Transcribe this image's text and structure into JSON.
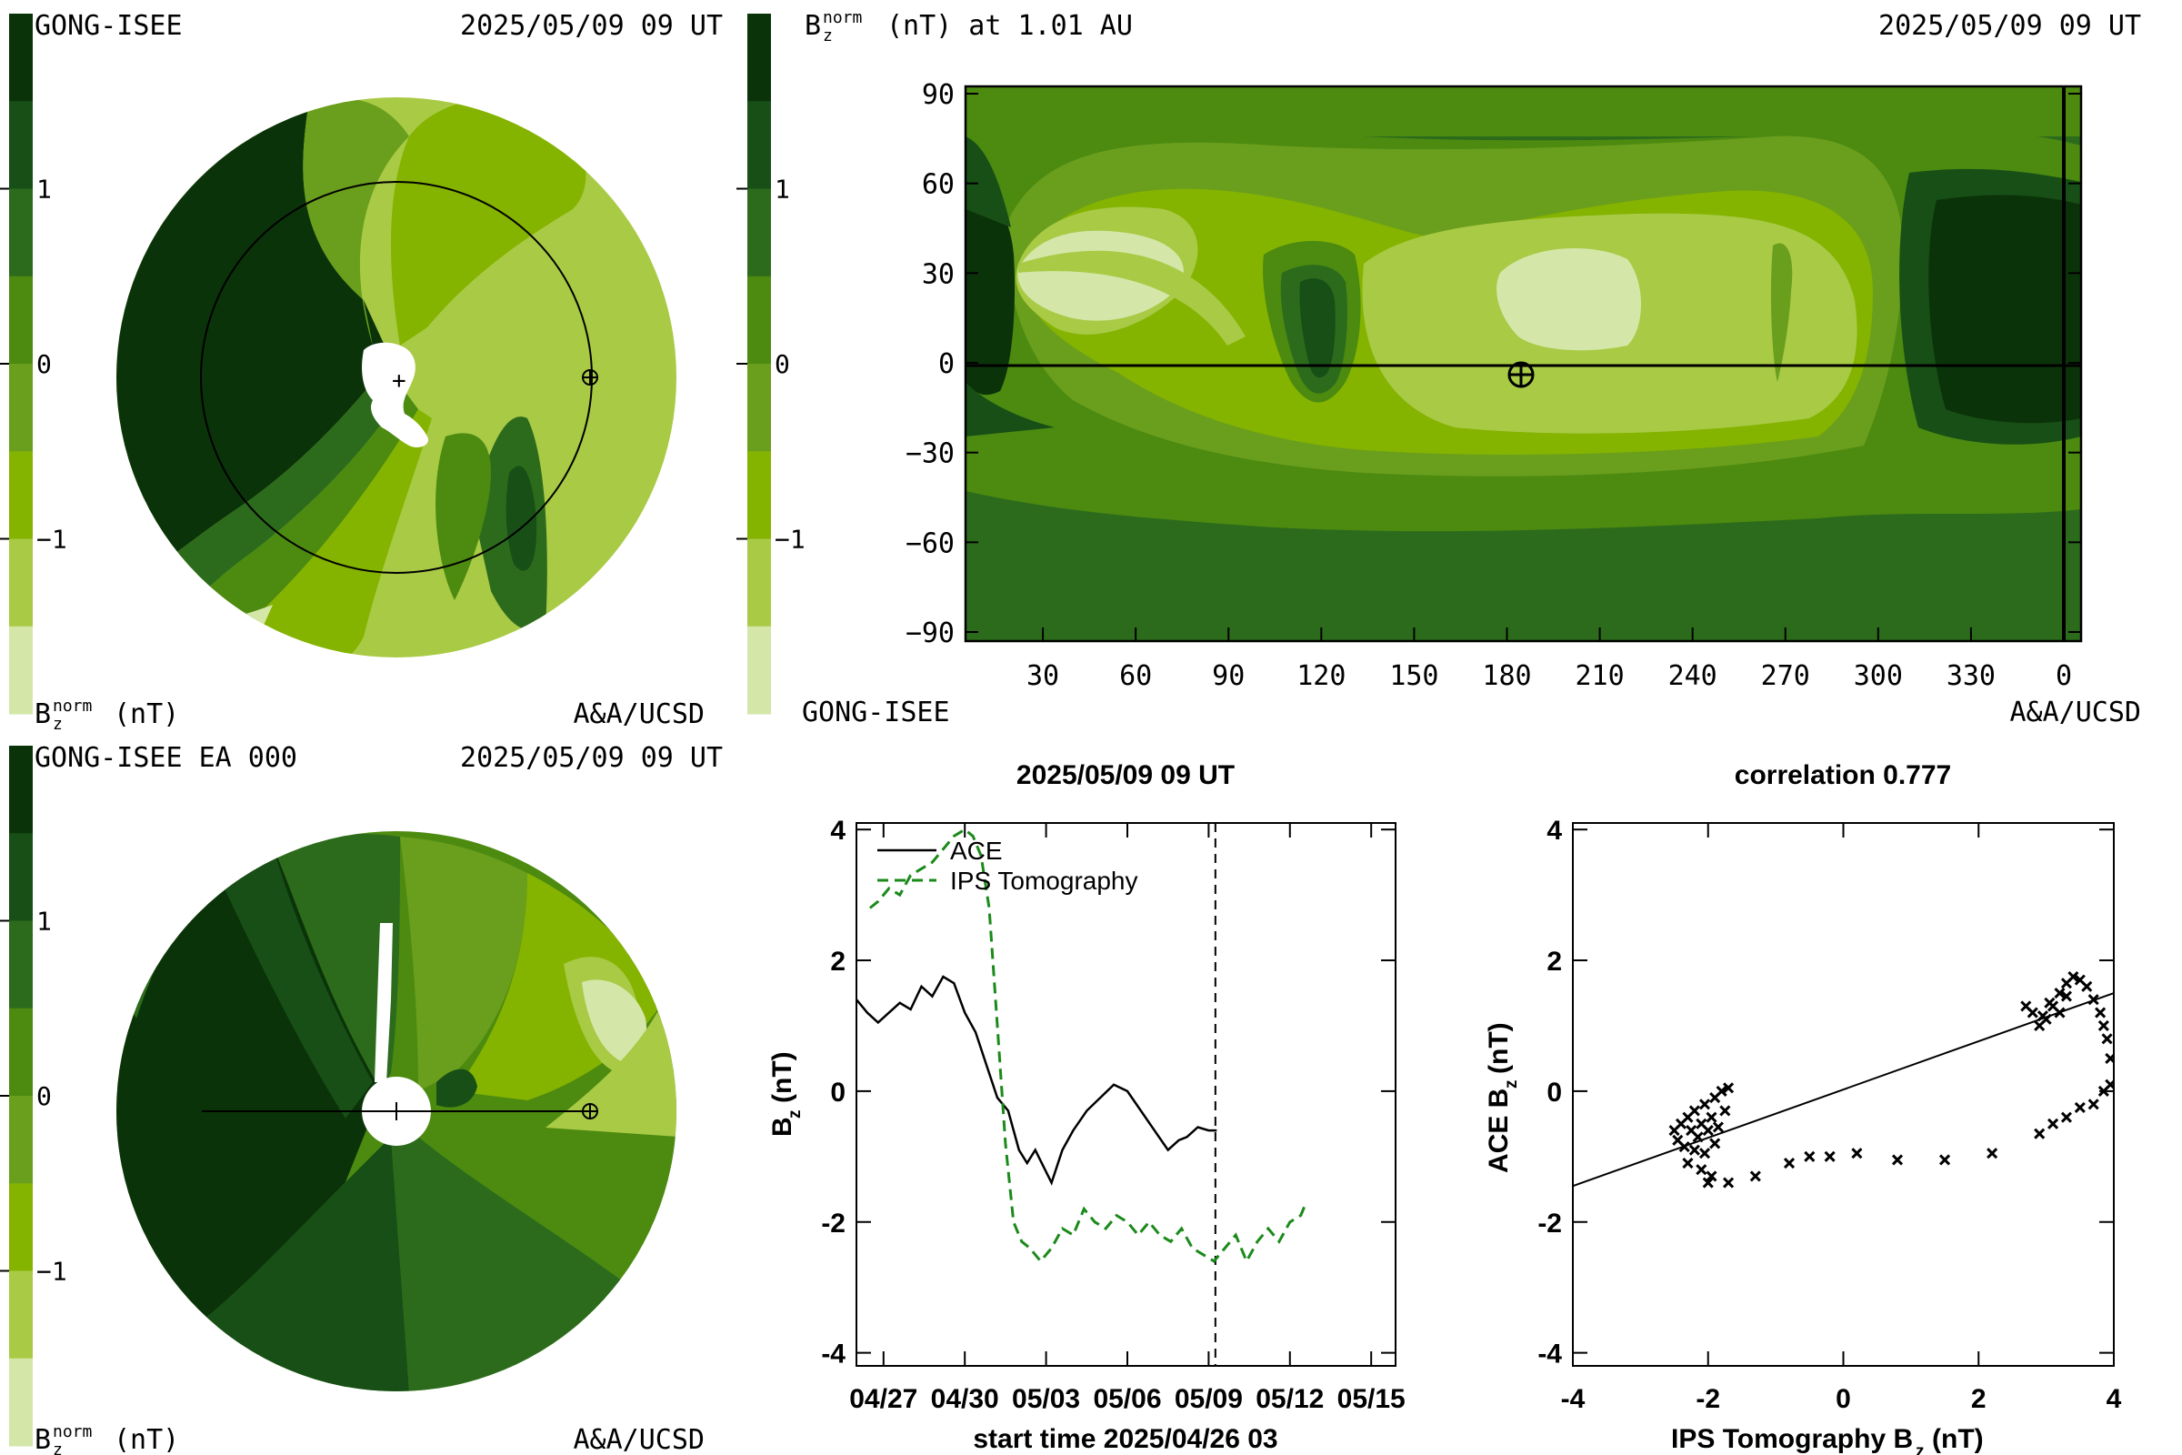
{
  "colorbar_colors": [
    "#d4e7a9",
    "#a9ca45",
    "#84b300",
    "#6a9e1d",
    "#4c8a10",
    "#2c6b1c",
    "#174f16",
    "#0b3309"
  ],
  "panel_top_left": {
    "source": "GONG-ISEE",
    "datetime": "2025/05/09 09 UT",
    "colorbar_ticks": [
      "1",
      "0",
      "−1"
    ],
    "quantity": "B",
    "quantity_sub": "z",
    "quantity_sup": "norm",
    "unit": "(nT)",
    "credit": "A&A/UCSD"
  },
  "panel_bottom_left": {
    "source": "GONG-ISEE EA 000",
    "datetime": "2025/05/09 09 UT",
    "colorbar_ticks": [
      "1",
      "0",
      "−1"
    ],
    "quantity": "B",
    "quantity_sub": "z",
    "quantity_sup": "norm",
    "unit": "(nT)",
    "credit": "A&A/UCSD"
  },
  "panel_map": {
    "title_quantity": "B",
    "title_sub": "z",
    "title_sup": "norm",
    "title_rest": "(nT) at 1.01 AU",
    "datetime": "2025/05/09 09 UT",
    "colorbar_ticks": [
      "1",
      "0",
      "−1"
    ],
    "source": "GONG-ISEE",
    "credit": "A&A/UCSD",
    "y_ticks": [
      "90",
      "60",
      "30",
      "0",
      "−30",
      "−60",
      "−90"
    ],
    "x_ticks": [
      "30",
      "60",
      "90",
      "120",
      "150",
      "180",
      "210",
      "240",
      "270",
      "300",
      "330",
      "0"
    ]
  },
  "chart_data": [
    {
      "type": "line",
      "title": "2025/05/09 09 UT",
      "xlabel": "start time 2025/04/26 03",
      "ylabel": "B",
      "ylabel_sub": "z",
      "ylabel_unit": "(nT)",
      "x_tick_labels": [
        "04/27",
        "04/30",
        "05/03",
        "05/06",
        "05/09",
        "05/12",
        "05/15"
      ],
      "x_tick_days": [
        1,
        4,
        7,
        10,
        13,
        16,
        19
      ],
      "xlim_days": [
        0,
        19.9
      ],
      "ylim": [
        -4.2,
        4.1
      ],
      "y_ticks": [
        4,
        2,
        0,
        -2,
        -4
      ],
      "vline_day": 13.25,
      "legend_location": "top-left",
      "series": [
        {
          "name": "ACE",
          "style": "solid",
          "color": "#000000",
          "x": [
            0,
            0.4,
            0.8,
            1.2,
            1.6,
            2.0,
            2.4,
            2.8,
            3.2,
            3.6,
            4.0,
            4.4,
            4.8,
            5.2,
            5.6,
            6.0,
            6.3,
            6.6,
            6.9,
            7.2,
            7.6,
            8.0,
            8.5,
            9.0,
            9.5,
            10.0,
            10.5,
            11.0,
            11.5,
            11.9,
            12.2,
            12.6,
            13.0,
            13.3
          ],
          "y": [
            1.4,
            1.2,
            1.05,
            1.2,
            1.35,
            1.25,
            1.6,
            1.45,
            1.75,
            1.65,
            1.2,
            0.9,
            0.4,
            -0.1,
            -0.3,
            -0.9,
            -1.1,
            -0.9,
            -1.15,
            -1.4,
            -0.9,
            -0.6,
            -0.3,
            -0.1,
            0.1,
            0.0,
            -0.3,
            -0.6,
            -0.9,
            -0.75,
            -0.7,
            -0.55,
            -0.6,
            -0.6
          ]
        },
        {
          "name": "IPS Tomography",
          "style": "dashed",
          "color": "#1a8a1a",
          "x": [
            0.5,
            0.8,
            1.2,
            1.6,
            2.0,
            2.4,
            2.8,
            3.2,
            3.6,
            4.0,
            4.3,
            4.6,
            4.9,
            5.2,
            5.5,
            5.8,
            6.1,
            6.4,
            6.8,
            7.2,
            7.6,
            8.0,
            8.4,
            8.8,
            9.2,
            9.6,
            10.0,
            10.4,
            10.8,
            11.2,
            11.6,
            12.0,
            12.4,
            12.8,
            13.2,
            13.6,
            14.0,
            14.4,
            14.8,
            15.2,
            15.6,
            16.0,
            16.4,
            16.6
          ],
          "y": [
            2.8,
            2.9,
            3.1,
            3.0,
            3.3,
            3.4,
            3.5,
            3.7,
            3.9,
            4.0,
            3.9,
            3.6,
            2.8,
            1.0,
            -0.8,
            -2.0,
            -2.3,
            -2.4,
            -2.6,
            -2.4,
            -2.1,
            -2.2,
            -1.8,
            -2.0,
            -2.1,
            -1.9,
            -2.0,
            -2.2,
            -2.0,
            -2.2,
            -2.3,
            -2.1,
            -2.4,
            -2.5,
            -2.6,
            -2.4,
            -2.2,
            -2.6,
            -2.3,
            -2.1,
            -2.3,
            -2.0,
            -1.9,
            -1.7
          ]
        }
      ]
    },
    {
      "type": "scatter",
      "title": "correlation 0.777",
      "xlabel": "IPS Tomography B",
      "xlabel_sub": "z",
      "xlabel_unit": "(nT)",
      "ylabel": "ACE B",
      "ylabel_sub": "z",
      "ylabel_unit": "(nT)",
      "xlim": [
        -4,
        4
      ],
      "ylim": [
        -4.2,
        4.1
      ],
      "x_ticks": [
        -4,
        -2,
        0,
        2,
        4
      ],
      "y_ticks": [
        4,
        2,
        0,
        -2,
        -4
      ],
      "fit_line": {
        "x": [
          -4,
          4
        ],
        "y": [
          -1.45,
          1.5
        ]
      },
      "points": [
        [
          -2.5,
          -0.6
        ],
        [
          -2.45,
          -0.75
        ],
        [
          -2.4,
          -0.5
        ],
        [
          -2.35,
          -0.85
        ],
        [
          -2.3,
          -0.4
        ],
        [
          -2.25,
          -0.6
        ],
        [
          -2.2,
          -0.9
        ],
        [
          -2.2,
          -0.3
        ],
        [
          -2.15,
          -0.7
        ],
        [
          -2.1,
          -0.5
        ],
        [
          -2.05,
          -0.95
        ],
        [
          -2.05,
          -0.2
        ],
        [
          -2.0,
          -0.6
        ],
        [
          -1.95,
          -0.4
        ],
        [
          -1.9,
          -0.1
        ],
        [
          -1.9,
          -0.8
        ],
        [
          -1.85,
          -0.55
        ],
        [
          -1.8,
          0.0
        ],
        [
          -1.75,
          -0.3
        ],
        [
          -1.7,
          0.05
        ],
        [
          -2.3,
          -1.1
        ],
        [
          -2.1,
          -1.2
        ],
        [
          -1.95,
          -1.3
        ],
        [
          -2.0,
          -1.4
        ],
        [
          -1.7,
          -1.4
        ],
        [
          -1.3,
          -1.3
        ],
        [
          -0.8,
          -1.1
        ],
        [
          -0.5,
          -1.0
        ],
        [
          -0.2,
          -1.0
        ],
        [
          0.2,
          -0.95
        ],
        [
          0.8,
          -1.05
        ],
        [
          1.5,
          -1.05
        ],
        [
          2.2,
          -0.95
        ],
        [
          2.9,
          -0.65
        ],
        [
          3.1,
          -0.5
        ],
        [
          3.3,
          -0.4
        ],
        [
          3.5,
          -0.25
        ],
        [
          3.7,
          -0.2
        ],
        [
          3.85,
          0.0
        ],
        [
          3.95,
          0.1
        ],
        [
          3.95,
          0.5
        ],
        [
          3.9,
          0.8
        ],
        [
          3.85,
          1.0
        ],
        [
          3.8,
          1.2
        ],
        [
          3.7,
          1.4
        ],
        [
          3.6,
          1.6
        ],
        [
          3.5,
          1.7
        ],
        [
          3.4,
          1.75
        ],
        [
          3.3,
          1.65
        ],
        [
          3.2,
          1.5
        ],
        [
          3.1,
          1.3
        ],
        [
          3.0,
          1.1
        ],
        [
          2.9,
          1.0
        ],
        [
          2.8,
          1.2
        ],
        [
          2.7,
          1.3
        ],
        [
          3.05,
          1.35
        ],
        [
          3.2,
          1.2
        ],
        [
          2.95,
          1.15
        ],
        [
          3.3,
          1.45
        ]
      ]
    }
  ]
}
